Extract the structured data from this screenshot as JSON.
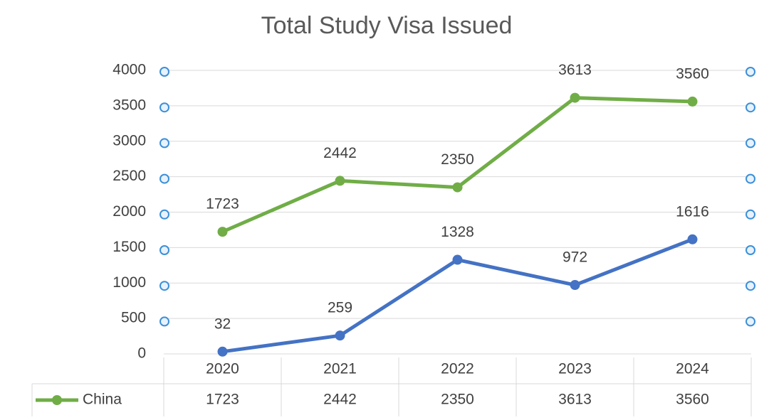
{
  "chart_data": {
    "type": "line",
    "title": "Total Study Visa Issued",
    "categories": [
      "2020",
      "2021",
      "2022",
      "2023",
      "2024"
    ],
    "series": [
      {
        "name": "China",
        "color": "#70ad47",
        "values": [
          1723,
          2442,
          2350,
          3613,
          3560
        ]
      },
      {
        "color": "#4472c4",
        "values": [
          32,
          259,
          1328,
          972,
          1616
        ]
      }
    ],
    "ylim": [
      0,
      4000
    ],
    "yticks": [
      0,
      500,
      1000,
      1500,
      2000,
      2500,
      3000,
      3500,
      4000
    ],
    "grid": true,
    "data_table": true
  }
}
